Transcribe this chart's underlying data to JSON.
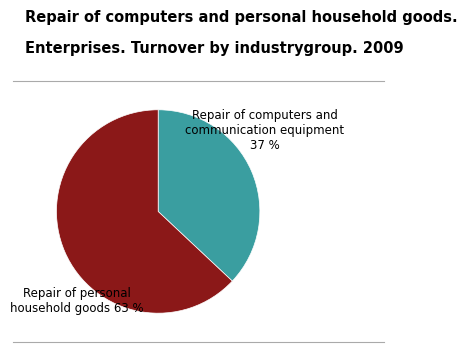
{
  "title_line1": "Repair of computers and personal household goods.",
  "title_line2": "Enterprises. Turnover by industrygroup. 2009",
  "slices": [
    37,
    63
  ],
  "colors": [
    "#3a9ea0",
    "#8b1818"
  ],
  "label_teal": "Repair of computers and\ncommunication equipment\n37 %",
  "label_red": "Repair of personal\nhousehold goods 63 %",
  "startangle": 90,
  "title_fontsize": 10.5,
  "label_fontsize": 8.5,
  "background_color": "#ffffff"
}
